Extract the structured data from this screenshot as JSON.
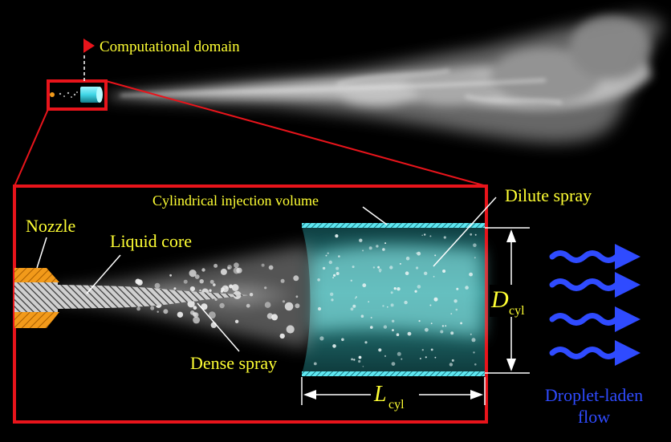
{
  "labels": {
    "computational_domain": "Computational domain",
    "nozzle": "Nozzle",
    "liquid_core": "Liquid core",
    "dense_spray": "Dense spray",
    "cylindrical_injection_volume": "Cylindrical injection volume",
    "dilute_spray": "Dilute spray",
    "diameter_symbol": "D",
    "diameter_subscript": "cyl",
    "length_symbol": "L",
    "length_subscript": "cyl",
    "flow_line1": "Droplet-laden",
    "flow_line2": "flow"
  },
  "colors": {
    "background": "#000000",
    "label_yellow": "#ffff33",
    "frame_red": "#e8141b",
    "flow_blue": "#2f4bff",
    "nozzle_orange": "#f29a1a",
    "cylinder_teal": "#1d6e6e",
    "cylinder_edge_cyan": "#5ee6f0",
    "dimension_white": "#ffffff"
  },
  "icons": {
    "flow_arrows": "wavy-arrow-icon",
    "domain_marker": "triangle-marker-icon"
  }
}
